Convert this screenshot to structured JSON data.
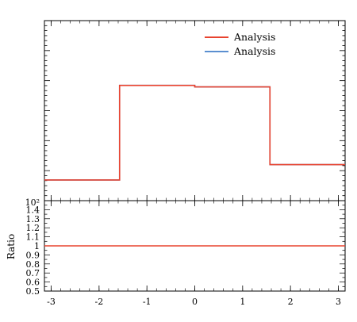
{
  "chart_data": [
    {
      "panel": "main",
      "type": "line",
      "style": "step-histogram",
      "legend_position": "top-right",
      "legend_entries": [
        "Analysis",
        "Analysis"
      ],
      "series": [
        {
          "name": "Analysis",
          "color": "#e8432f",
          "bin_edges": [
            -3.14159,
            -1.5708,
            0,
            1.5708,
            3.14159
          ],
          "values": [
            0.115,
            0.64,
            0.632,
            0.2
          ]
        },
        {
          "name": "Analysis",
          "color": "#5b8fd0",
          "bin_edges": [
            -3.14159,
            -1.5708,
            0,
            1.5708,
            3.14159
          ],
          "values": [
            0.115,
            0.64,
            0.632,
            0.2
          ]
        }
      ],
      "xlim": [
        -3.14159,
        3.14159
      ],
      "ylim": [
        0,
        1
      ],
      "top_label": "10²"
    },
    {
      "panel": "ratio",
      "type": "line",
      "ylabel": "Ratio",
      "x": [
        -3.14159,
        3.14159
      ],
      "series": [
        {
          "name": "",
          "color": "#e8432f",
          "values": [
            1,
            1
          ]
        }
      ],
      "xlim": [
        -3.14159,
        3.14159
      ],
      "ylim": [
        0.5,
        1.5
      ],
      "y_ticks": [
        0.5,
        0.6,
        0.7,
        0.8,
        0.9,
        1,
        1.1,
        1.2,
        1.3,
        1.4
      ],
      "y_tick_labels": [
        "0.5",
        "0.6",
        "0.7",
        "0.8",
        "0.9",
        "1",
        "1.1",
        "1.2",
        "1.3",
        "1.4"
      ],
      "x_ticks": [
        -3,
        -2,
        -1,
        0,
        1,
        2,
        3
      ],
      "x_tick_labels": [
        "-3",
        "-2",
        "-1",
        "0",
        "1",
        "2",
        "3"
      ]
    }
  ]
}
